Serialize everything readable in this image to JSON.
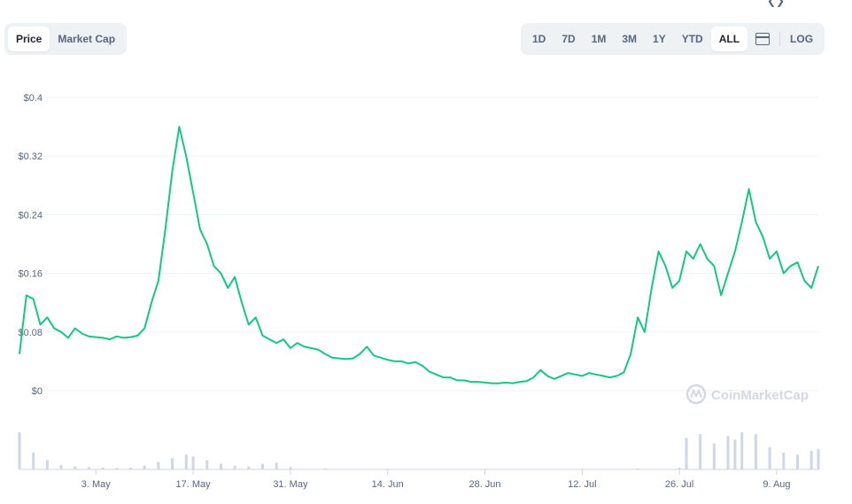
{
  "toolbar": {
    "metric_tabs": [
      {
        "label": "Price",
        "active": true
      },
      {
        "label": "Market Cap",
        "active": false
      }
    ],
    "ranges": [
      {
        "label": "1D",
        "active": false
      },
      {
        "label": "7D",
        "active": false
      },
      {
        "label": "1M",
        "active": false
      },
      {
        "label": "3M",
        "active": false
      },
      {
        "label": "1Y",
        "active": false
      },
      {
        "label": "YTD",
        "active": false
      },
      {
        "label": "ALL",
        "active": true
      }
    ],
    "calendar_icon": "calendar-icon",
    "log_label": "LOG"
  },
  "watermark": {
    "text": "CoinMarketCap",
    "icon": "coinmarketcap-logo-icon"
  },
  "colors": {
    "line": "#16c784",
    "grid": "#eff2f5",
    "volume": "#cfd6e4",
    "accent_text": "#58667e"
  },
  "chart_data": {
    "type": "line",
    "title": "",
    "xlabel": "",
    "ylabel": "",
    "ylim": [
      0,
      0.4
    ],
    "grid": true,
    "y_ticks": [
      {
        "value": 0,
        "label": "$0"
      },
      {
        "value": 0.08,
        "label": "$0.08"
      },
      {
        "value": 0.16,
        "label": "$0.16"
      },
      {
        "value": 0.24,
        "label": "$0.24"
      },
      {
        "value": 0.32,
        "label": "$0.32"
      },
      {
        "value": 0.4,
        "label": "$0.4"
      }
    ],
    "x_ticks": [
      {
        "date": "2021-05-03",
        "label": "3. May"
      },
      {
        "date": "2021-05-17",
        "label": "17. May"
      },
      {
        "date": "2021-05-31",
        "label": "31. May"
      },
      {
        "date": "2021-06-14",
        "label": "14. Jun"
      },
      {
        "date": "2021-06-28",
        "label": "28. Jun"
      },
      {
        "date": "2021-07-12",
        "label": "12. Jul"
      },
      {
        "date": "2021-07-26",
        "label": "26. Jul"
      },
      {
        "date": "2021-08-09",
        "label": "9. Aug"
      }
    ],
    "xlim": [
      "2021-04-22",
      "2021-08-15"
    ],
    "series": [
      {
        "values": [
          [
            "2021-04-22",
            0.05
          ],
          [
            "2021-04-23",
            0.13
          ],
          [
            "2021-04-24",
            0.125
          ],
          [
            "2021-04-25",
            0.09
          ],
          [
            "2021-04-26",
            0.1
          ],
          [
            "2021-04-27",
            0.085
          ],
          [
            "2021-04-28",
            0.08
          ],
          [
            "2021-04-29",
            0.072
          ],
          [
            "2021-04-30",
            0.085
          ],
          [
            "2021-05-01",
            0.078
          ],
          [
            "2021-05-02",
            0.074
          ],
          [
            "2021-05-03",
            0.073
          ],
          [
            "2021-05-04",
            0.072
          ],
          [
            "2021-05-05",
            0.07
          ],
          [
            "2021-05-06",
            0.074
          ],
          [
            "2021-05-07",
            0.072
          ],
          [
            "2021-05-08",
            0.073
          ],
          [
            "2021-05-09",
            0.075
          ],
          [
            "2021-05-10",
            0.085
          ],
          [
            "2021-05-11",
            0.12
          ],
          [
            "2021-05-12",
            0.15
          ],
          [
            "2021-05-13",
            0.22
          ],
          [
            "2021-05-14",
            0.3
          ],
          [
            "2021-05-15",
            0.36
          ],
          [
            "2021-05-16",
            0.32
          ],
          [
            "2021-05-17",
            0.27
          ],
          [
            "2021-05-18",
            0.22
          ],
          [
            "2021-05-19",
            0.2
          ],
          [
            "2021-05-20",
            0.17
          ],
          [
            "2021-05-21",
            0.16
          ],
          [
            "2021-05-22",
            0.14
          ],
          [
            "2021-05-23",
            0.155
          ],
          [
            "2021-05-24",
            0.12
          ],
          [
            "2021-05-25",
            0.09
          ],
          [
            "2021-05-26",
            0.1
          ],
          [
            "2021-05-27",
            0.075
          ],
          [
            "2021-05-28",
            0.07
          ],
          [
            "2021-05-29",
            0.065
          ],
          [
            "2021-05-30",
            0.07
          ],
          [
            "2021-05-31",
            0.058
          ],
          [
            "2021-06-01",
            0.065
          ],
          [
            "2021-06-02",
            0.06
          ],
          [
            "2021-06-03",
            0.058
          ],
          [
            "2021-06-04",
            0.056
          ],
          [
            "2021-06-05",
            0.05
          ],
          [
            "2021-06-06",
            0.045
          ],
          [
            "2021-06-07",
            0.044
          ],
          [
            "2021-06-08",
            0.043
          ],
          [
            "2021-06-09",
            0.044
          ],
          [
            "2021-06-10",
            0.05
          ],
          [
            "2021-06-11",
            0.06
          ],
          [
            "2021-06-12",
            0.048
          ],
          [
            "2021-06-13",
            0.045
          ],
          [
            "2021-06-14",
            0.042
          ],
          [
            "2021-06-15",
            0.04
          ],
          [
            "2021-06-16",
            0.04
          ],
          [
            "2021-06-17",
            0.037
          ],
          [
            "2021-06-18",
            0.039
          ],
          [
            "2021-06-19",
            0.034
          ],
          [
            "2021-06-20",
            0.026
          ],
          [
            "2021-06-21",
            0.022
          ],
          [
            "2021-06-22",
            0.018
          ],
          [
            "2021-06-23",
            0.018
          ],
          [
            "2021-06-24",
            0.014
          ],
          [
            "2021-06-25",
            0.014
          ],
          [
            "2021-06-26",
            0.012
          ],
          [
            "2021-06-27",
            0.012
          ],
          [
            "2021-06-28",
            0.011
          ],
          [
            "2021-06-29",
            0.01
          ],
          [
            "2021-06-30",
            0.01
          ],
          [
            "2021-07-01",
            0.011
          ],
          [
            "2021-07-02",
            0.01
          ],
          [
            "2021-07-03",
            0.012
          ],
          [
            "2021-07-04",
            0.013
          ],
          [
            "2021-07-05",
            0.018
          ],
          [
            "2021-07-06",
            0.028
          ],
          [
            "2021-07-07",
            0.02
          ],
          [
            "2021-07-08",
            0.016
          ],
          [
            "2021-07-09",
            0.02
          ],
          [
            "2021-07-10",
            0.024
          ],
          [
            "2021-07-11",
            0.022
          ],
          [
            "2021-07-12",
            0.02
          ],
          [
            "2021-07-13",
            0.024
          ],
          [
            "2021-07-14",
            0.022
          ],
          [
            "2021-07-15",
            0.02
          ],
          [
            "2021-07-16",
            0.018
          ],
          [
            "2021-07-17",
            0.02
          ],
          [
            "2021-07-18",
            0.025
          ],
          [
            "2021-07-19",
            0.05
          ],
          [
            "2021-07-20",
            0.1
          ],
          [
            "2021-07-21",
            0.08
          ],
          [
            "2021-07-22",
            0.14
          ],
          [
            "2021-07-23",
            0.19
          ],
          [
            "2021-07-24",
            0.17
          ],
          [
            "2021-07-25",
            0.14
          ],
          [
            "2021-07-26",
            0.15
          ],
          [
            "2021-07-27",
            0.19
          ],
          [
            "2021-07-28",
            0.18
          ],
          [
            "2021-07-29",
            0.2
          ],
          [
            "2021-07-30",
            0.18
          ],
          [
            "2021-07-31",
            0.17
          ],
          [
            "2021-08-01",
            0.13
          ],
          [
            "2021-08-02",
            0.16
          ],
          [
            "2021-08-03",
            0.19
          ],
          [
            "2021-08-04",
            0.23
          ],
          [
            "2021-08-05",
            0.275
          ],
          [
            "2021-08-06",
            0.23
          ],
          [
            "2021-08-07",
            0.21
          ],
          [
            "2021-08-08",
            0.18
          ],
          [
            "2021-08-09",
            0.19
          ],
          [
            "2021-08-10",
            0.16
          ],
          [
            "2021-08-11",
            0.17
          ],
          [
            "2021-08-12",
            0.175
          ],
          [
            "2021-08-13",
            0.15
          ],
          [
            "2021-08-14",
            0.14
          ],
          [
            "2021-08-15",
            0.17
          ]
        ]
      }
    ],
    "volume": {
      "values": [
        [
          "2021-04-22",
          1.0
        ],
        [
          "2021-04-24",
          0.45
        ],
        [
          "2021-04-26",
          0.25
        ],
        [
          "2021-04-28",
          0.12
        ],
        [
          "2021-04-30",
          0.08
        ],
        [
          "2021-05-02",
          0.06
        ],
        [
          "2021-05-04",
          0.05
        ],
        [
          "2021-05-06",
          0.04
        ],
        [
          "2021-05-08",
          0.05
        ],
        [
          "2021-05-10",
          0.1
        ],
        [
          "2021-05-12",
          0.2
        ],
        [
          "2021-05-14",
          0.3
        ],
        [
          "2021-05-16",
          0.4
        ],
        [
          "2021-05-17",
          0.35
        ],
        [
          "2021-05-19",
          0.25
        ],
        [
          "2021-05-21",
          0.15
        ],
        [
          "2021-05-23",
          0.1
        ],
        [
          "2021-05-25",
          0.08
        ],
        [
          "2021-05-27",
          0.15
        ],
        [
          "2021-05-29",
          0.18
        ],
        [
          "2021-05-31",
          0.06
        ],
        [
          "2021-06-05",
          0.03
        ],
        [
          "2021-06-14",
          0.02
        ],
        [
          "2021-06-28",
          0.02
        ],
        [
          "2021-07-12",
          0.02
        ],
        [
          "2021-07-20",
          0.03
        ],
        [
          "2021-07-26",
          0.05
        ],
        [
          "2021-07-27",
          0.85
        ],
        [
          "2021-07-29",
          0.95
        ],
        [
          "2021-07-31",
          0.7
        ],
        [
          "2021-08-02",
          0.9
        ],
        [
          "2021-08-03",
          0.8
        ],
        [
          "2021-08-04",
          1.0
        ],
        [
          "2021-08-06",
          0.95
        ],
        [
          "2021-08-08",
          0.6
        ],
        [
          "2021-08-10",
          0.45
        ],
        [
          "2021-08-12",
          0.4
        ],
        [
          "2021-08-14",
          0.5
        ],
        [
          "2021-08-15",
          0.55
        ]
      ]
    }
  }
}
